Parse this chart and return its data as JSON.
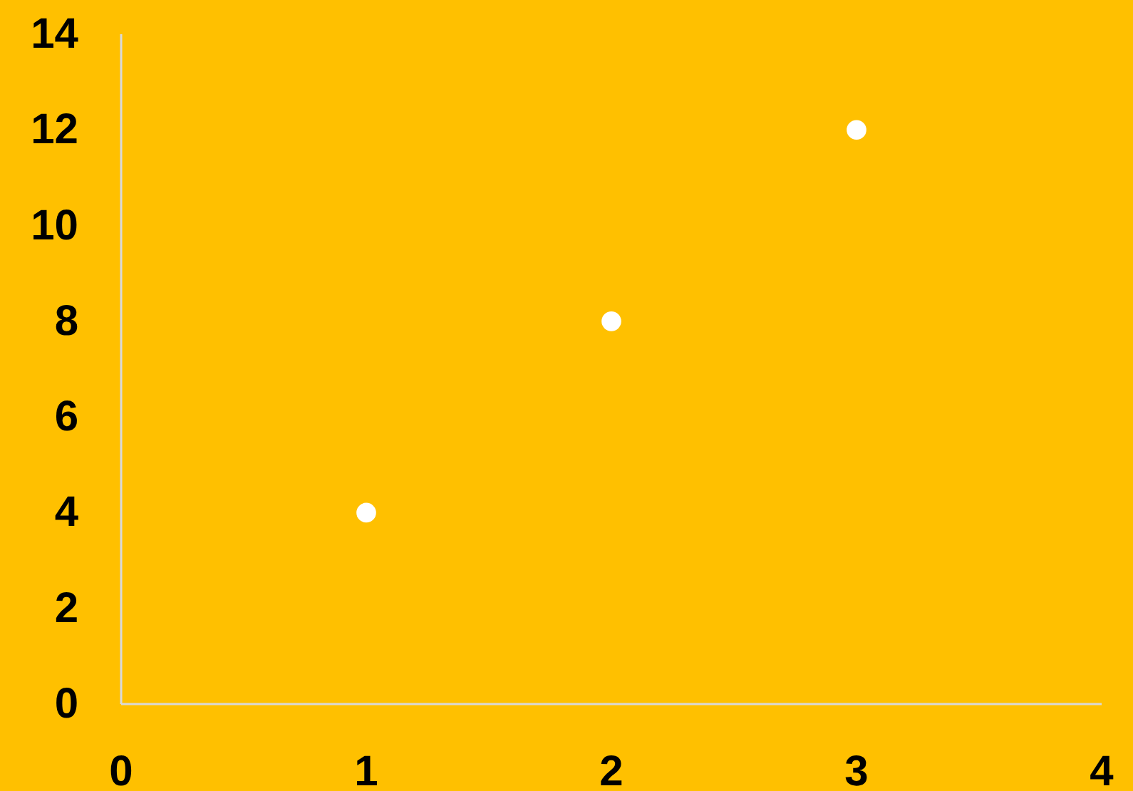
{
  "chart_data": {
    "type": "scatter",
    "x": [
      1,
      2,
      3
    ],
    "values": [
      4,
      8,
      12
    ],
    "color": "#ffffff",
    "marker": "circle",
    "xlim": [
      0,
      4
    ],
    "xticks": [
      0,
      1,
      2,
      3,
      4
    ],
    "ylim": [
      0,
      14
    ],
    "yticks": [
      0,
      2,
      4,
      6,
      8,
      10,
      12,
      14
    ],
    "grid": false
  }
}
